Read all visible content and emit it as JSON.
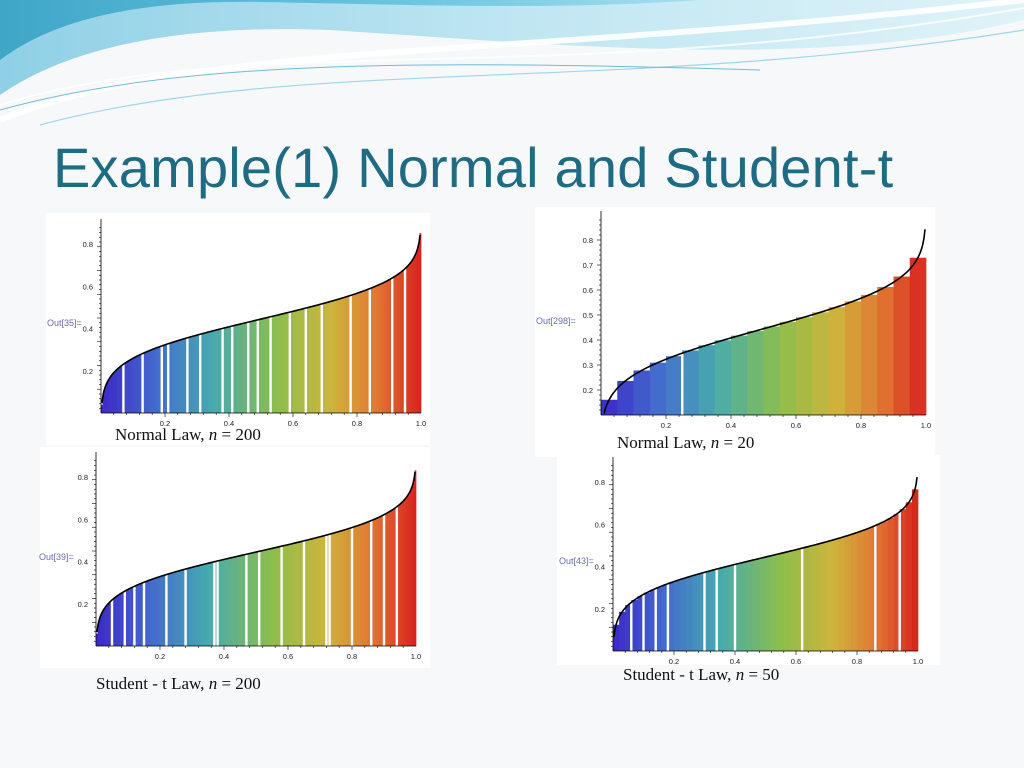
{
  "slide": {
    "title": "Example(1) Normal and Student-t"
  },
  "colors": {
    "title": "#1e6b83",
    "bar_low": "#3a2bc9",
    "bar_mid": "#8cc04a",
    "bar_high": "#d8261f",
    "curve": "#000000"
  },
  "chart_data": [
    {
      "id": "c1",
      "type": "bar",
      "out_label": "Out[35]=",
      "caption": {
        "law": "Normal Law,",
        "var": "n",
        "eq": "=",
        "val": "200"
      },
      "n": 200,
      "distribution": "normal",
      "xlim": [
        0,
        1.0
      ],
      "ylim": [
        0,
        0.9
      ],
      "xticks": [
        "0.2",
        "0.4",
        "0.6",
        "0.8",
        "1.0"
      ],
      "yticks": [
        "0.2",
        "0.4",
        "0.6",
        "0.8"
      ],
      "gaps": [
        0.07,
        0.13,
        0.19,
        0.21,
        0.27,
        0.31,
        0.38,
        0.41,
        0.46,
        0.49,
        0.53,
        0.59,
        0.64,
        0.69,
        0.78,
        0.84,
        0.91,
        0.95
      ]
    },
    {
      "id": "c2",
      "type": "bar",
      "out_label": "Out[298]=",
      "caption": {
        "law": "Normal Law,",
        "var": "n",
        "eq": "=",
        "val": "20"
      },
      "n": 20,
      "distribution": "normal",
      "xlim": [
        0,
        1.0
      ],
      "ylim": [
        0.1,
        0.9
      ],
      "xticks": [
        "0.2",
        "0.4",
        "0.6",
        "0.8",
        "1.0"
      ],
      "yticks": [
        "0.2",
        "0.3",
        "0.4",
        "0.5",
        "0.6",
        "0.7",
        "0.8"
      ],
      "gaps": [
        0.25
      ]
    },
    {
      "id": "c3",
      "type": "bar",
      "out_label": "Out[39]=",
      "caption": {
        "law": "Student - t  Law,",
        "var": "n",
        "eq": "=",
        "val": "200"
      },
      "n": 200,
      "distribution": "student-t",
      "xlim": [
        0,
        1.0
      ],
      "ylim": [
        0,
        0.9
      ],
      "xticks": [
        "0.2",
        "0.4",
        "0.6",
        "0.8",
        "1.0"
      ],
      "yticks": [
        "0.2",
        "0.4",
        "0.6",
        "0.8"
      ],
      "gaps": [
        0.05,
        0.09,
        0.12,
        0.15,
        0.22,
        0.28,
        0.37,
        0.38,
        0.47,
        0.51,
        0.58,
        0.65,
        0.72,
        0.73,
        0.8,
        0.86,
        0.9,
        0.94
      ]
    },
    {
      "id": "c4",
      "type": "bar",
      "out_label": "Out[43]=",
      "caption": {
        "law": "Student - t  Law,",
        "var": "n",
        "eq": "=",
        "val": "50"
      },
      "n": 50,
      "distribution": "student-t",
      "xlim": [
        0,
        1.0
      ],
      "ylim": [
        0,
        0.9
      ],
      "xticks": [
        "0.2",
        "0.4",
        "0.6",
        "0.8",
        "1.0"
      ],
      "yticks": [
        "0.2",
        "0.4",
        "0.6",
        "0.8"
      ],
      "gaps": [
        0.06,
        0.1,
        0.14,
        0.18,
        0.3,
        0.34,
        0.4,
        0.62,
        0.86,
        0.94
      ]
    }
  ]
}
